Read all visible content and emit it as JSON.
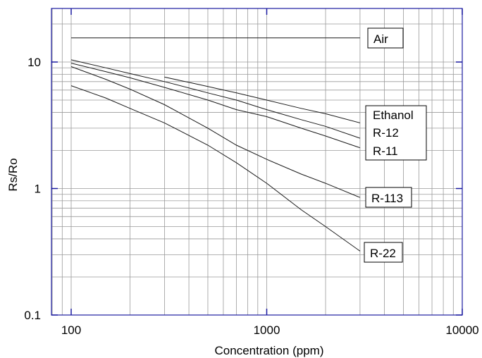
{
  "chart_data": {
    "type": "line",
    "title": "",
    "xlabel": "Concentration (ppm)",
    "ylabel": "Rs/Ro",
    "xscale": "log",
    "yscale": "log",
    "xlim": [
      80,
      10000
    ],
    "ylim": [
      0.1,
      25
    ],
    "grid": true,
    "legend": "none; series names printed as boxed labels at right end of each curve",
    "xticks": [
      "100",
      "1000",
      "10000"
    ],
    "yticks": [
      "0.1",
      "1",
      "10"
    ],
    "colors": {
      "frame": "#1a1aa0",
      "grid": "#9a9a9a",
      "line": "#1a1a1a",
      "background": "#ffffff"
    },
    "series": [
      {
        "name": "Air",
        "x": [
          100,
          3000
        ],
        "y": [
          15.5,
          15.5
        ]
      },
      {
        "name": "Ethanol",
        "x": [
          300,
          400,
          500,
          700,
          1000,
          1500,
          2000,
          3000
        ],
        "y": [
          7.6,
          6.9,
          6.4,
          5.7,
          5.0,
          4.3,
          3.9,
          3.3
        ]
      },
      {
        "name": "R-12",
        "x": [
          100,
          150,
          200,
          300,
          500,
          700,
          1000,
          1500,
          2000,
          3000
        ],
        "y": [
          10.4,
          9.0,
          8.1,
          7.0,
          5.7,
          5.0,
          4.2,
          3.5,
          3.1,
          2.5
        ]
      },
      {
        "name": "R-11",
        "x": [
          100,
          150,
          200,
          300,
          500,
          700,
          1000,
          1500,
          2000,
          3000
        ],
        "y": [
          9.8,
          8.4,
          7.5,
          6.3,
          5.0,
          4.2,
          3.7,
          3.0,
          2.6,
          2.1
        ]
      },
      {
        "name": "R-113",
        "x": [
          100,
          150,
          200,
          300,
          500,
          700,
          1000,
          1500,
          2000,
          3000
        ],
        "y": [
          9.2,
          7.3,
          6.1,
          4.6,
          3.0,
          2.2,
          1.7,
          1.3,
          1.1,
          0.85
        ]
      },
      {
        "name": "R-22",
        "x": [
          100,
          150,
          200,
          300,
          500,
          700,
          1000,
          1500,
          2000,
          3000
        ],
        "y": [
          6.5,
          5.2,
          4.3,
          3.3,
          2.2,
          1.6,
          1.1,
          0.68,
          0.5,
          0.32
        ]
      }
    ]
  }
}
